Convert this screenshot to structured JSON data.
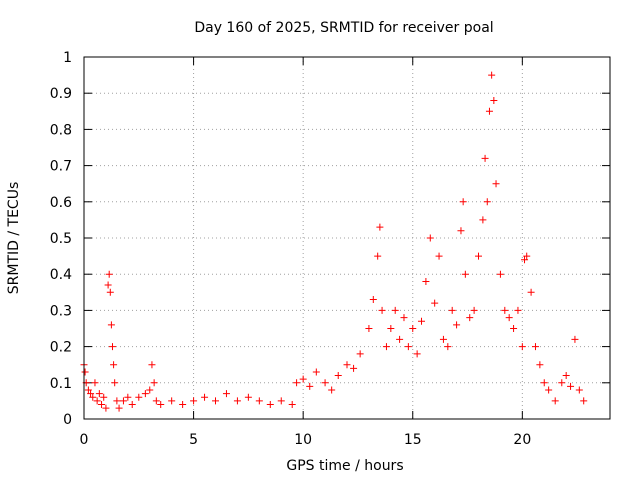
{
  "chart_data": {
    "type": "scatter",
    "title": "Day 160 of 2025, SRMTID for receiver poal",
    "xlabel": "GPS time / hours",
    "ylabel": "SRMTID / TECUs",
    "xlim": [
      0,
      24
    ],
    "ylim": [
      0,
      1
    ],
    "x_ticks": [
      0,
      5,
      10,
      15,
      20
    ],
    "x_tick_labels": [
      "0",
      "5",
      "10",
      "15",
      "20"
    ],
    "y_ticks": [
      0,
      0.1,
      0.2,
      0.3,
      0.4,
      0.5,
      0.6,
      0.7,
      0.8,
      0.9,
      1
    ],
    "y_tick_labels": [
      "0",
      "0.1",
      "0.2",
      "0.3",
      "0.4",
      "0.5",
      "0.6",
      "0.7",
      "0.8",
      "0.9",
      "1"
    ],
    "grid": true,
    "marker": "+",
    "series": [
      {
        "name": "SRMTID",
        "color": "#ff0000",
        "points": [
          [
            0.0,
            0.15
          ],
          [
            0.05,
            0.13
          ],
          [
            0.1,
            0.1
          ],
          [
            0.2,
            0.08
          ],
          [
            0.3,
            0.07
          ],
          [
            0.4,
            0.06
          ],
          [
            0.5,
            0.1
          ],
          [
            0.6,
            0.05
          ],
          [
            0.7,
            0.07
          ],
          [
            0.8,
            0.04
          ],
          [
            0.9,
            0.06
          ],
          [
            1.0,
            0.03
          ],
          [
            1.1,
            0.37
          ],
          [
            1.15,
            0.4
          ],
          [
            1.2,
            0.35
          ],
          [
            1.25,
            0.26
          ],
          [
            1.3,
            0.2
          ],
          [
            1.35,
            0.15
          ],
          [
            1.4,
            0.1
          ],
          [
            1.5,
            0.05
          ],
          [
            1.6,
            0.03
          ],
          [
            1.8,
            0.05
          ],
          [
            2.0,
            0.06
          ],
          [
            2.2,
            0.04
          ],
          [
            2.5,
            0.06
          ],
          [
            2.8,
            0.07
          ],
          [
            3.0,
            0.08
          ],
          [
            3.1,
            0.15
          ],
          [
            3.2,
            0.1
          ],
          [
            3.3,
            0.05
          ],
          [
            3.5,
            0.04
          ],
          [
            4.0,
            0.05
          ],
          [
            4.5,
            0.04
          ],
          [
            5.0,
            0.05
          ],
          [
            5.5,
            0.06
          ],
          [
            6.0,
            0.05
          ],
          [
            6.5,
            0.07
          ],
          [
            7.0,
            0.05
          ],
          [
            7.5,
            0.06
          ],
          [
            8.0,
            0.05
          ],
          [
            8.5,
            0.04
          ],
          [
            9.0,
            0.05
          ],
          [
            9.5,
            0.04
          ],
          [
            9.7,
            0.1
          ],
          [
            10.0,
            0.11
          ],
          [
            10.3,
            0.09
          ],
          [
            10.6,
            0.13
          ],
          [
            11.0,
            0.1
          ],
          [
            11.3,
            0.08
          ],
          [
            11.6,
            0.12
          ],
          [
            12.0,
            0.15
          ],
          [
            12.3,
            0.14
          ],
          [
            12.6,
            0.18
          ],
          [
            13.0,
            0.25
          ],
          [
            13.2,
            0.33
          ],
          [
            13.4,
            0.45
          ],
          [
            13.5,
            0.53
          ],
          [
            13.6,
            0.3
          ],
          [
            13.8,
            0.2
          ],
          [
            14.0,
            0.25
          ],
          [
            14.2,
            0.3
          ],
          [
            14.4,
            0.22
          ],
          [
            14.6,
            0.28
          ],
          [
            14.8,
            0.2
          ],
          [
            15.0,
            0.25
          ],
          [
            15.2,
            0.18
          ],
          [
            15.4,
            0.27
          ],
          [
            15.6,
            0.38
          ],
          [
            15.8,
            0.5
          ],
          [
            16.0,
            0.32
          ],
          [
            16.2,
            0.45
          ],
          [
            16.4,
            0.22
          ],
          [
            16.6,
            0.2
          ],
          [
            16.8,
            0.3
          ],
          [
            17.0,
            0.26
          ],
          [
            17.2,
            0.52
          ],
          [
            17.3,
            0.6
          ],
          [
            17.4,
            0.4
          ],
          [
            17.6,
            0.28
          ],
          [
            17.8,
            0.3
          ],
          [
            18.0,
            0.45
          ],
          [
            18.2,
            0.55
          ],
          [
            18.3,
            0.72
          ],
          [
            18.4,
            0.6
          ],
          [
            18.5,
            0.85
          ],
          [
            18.6,
            0.95
          ],
          [
            18.7,
            0.88
          ],
          [
            18.8,
            0.65
          ],
          [
            19.0,
            0.4
          ],
          [
            19.2,
            0.3
          ],
          [
            19.4,
            0.28
          ],
          [
            19.6,
            0.25
          ],
          [
            19.8,
            0.3
          ],
          [
            20.0,
            0.2
          ],
          [
            20.1,
            0.44
          ],
          [
            20.2,
            0.45
          ],
          [
            20.4,
            0.35
          ],
          [
            20.6,
            0.2
          ],
          [
            20.8,
            0.15
          ],
          [
            21.0,
            0.1
          ],
          [
            21.2,
            0.08
          ],
          [
            21.5,
            0.05
          ],
          [
            21.8,
            0.1
          ],
          [
            22.0,
            0.12
          ],
          [
            22.2,
            0.09
          ],
          [
            22.4,
            0.22
          ],
          [
            22.6,
            0.08
          ],
          [
            22.8,
            0.05
          ]
        ]
      }
    ]
  }
}
